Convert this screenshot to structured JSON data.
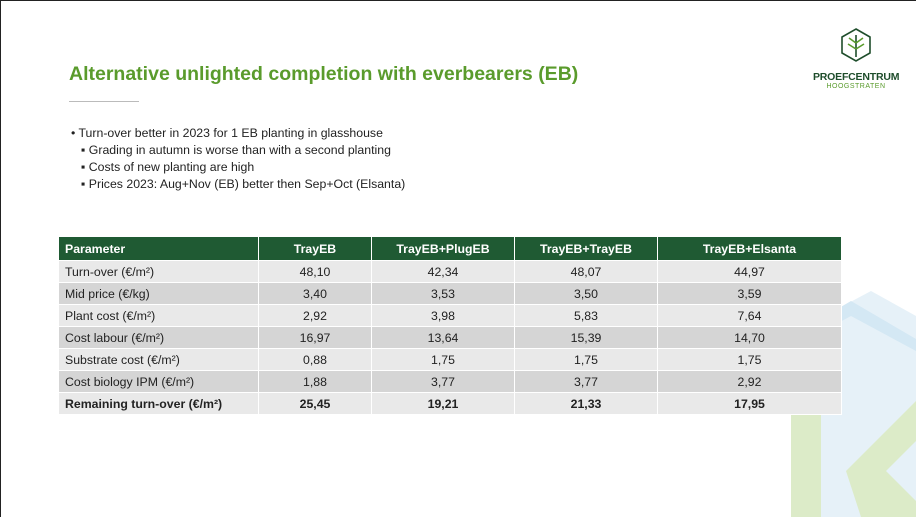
{
  "header": {
    "title": "Alternative unlighted completion with everbearers (EB)"
  },
  "logo": {
    "name": "PROEFCENTRUM",
    "sub": "HOOGSTRATEN"
  },
  "bullets": {
    "text": "Turn-over better in 2023 for 1 EB planting in glasshouse",
    "subitems": [
      "Grading in autumn is worse than with a second planting",
      "Costs of new planting are high",
      "Prices 2023: Aug+Nov (EB) better then Sep+Oct (Elsanta)"
    ]
  },
  "table": {
    "columns": [
      "Parameter",
      "TrayEB",
      "TrayEB+PlugEB",
      "TrayEB+TrayEB",
      "TrayEB+Elsanta"
    ],
    "rows": [
      [
        "Turn-over (€/m²)",
        "48,10",
        "42,34",
        "48,07",
        "44,97"
      ],
      [
        "Mid price (€/kg)",
        "3,40",
        "3,53",
        "3,50",
        "3,59"
      ],
      [
        "Plant cost (€/m²)",
        "2,92",
        "3,98",
        "5,83",
        "7,64"
      ],
      [
        "Cost labour (€/m²)",
        "16,97",
        "13,64",
        "15,39",
        "14,70"
      ],
      [
        "Substrate cost (€/m²)",
        "0,88",
        "1,75",
        "1,75",
        "1,75"
      ],
      [
        "Cost biology IPM (€/m²)",
        "1,88",
        "3,77",
        "3,77",
        "2,92"
      ],
      [
        "Remaining turn-over (€/m²)",
        "25,45",
        "19,21",
        "21,33",
        "17,95"
      ]
    ]
  }
}
